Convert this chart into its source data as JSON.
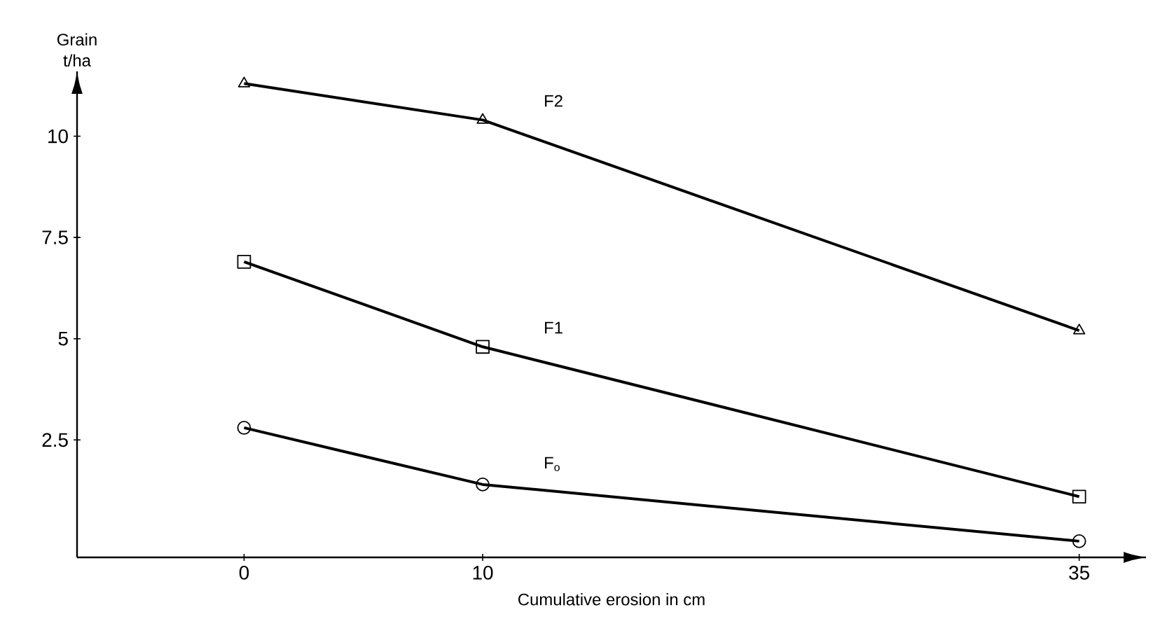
{
  "chart_data": {
    "type": "line",
    "xlabel": "Cumulative erosion in cm",
    "ylabel": "Grain t/ha",
    "x": [
      0,
      10,
      35
    ],
    "xlim": [
      -7,
      37.8
    ],
    "ylim": [
      -0.4,
      11.6
    ],
    "xticks": [
      0,
      10,
      35
    ],
    "yticks": [
      2.5,
      5,
      7.5,
      10
    ],
    "grid": false,
    "series": [
      {
        "name": "F2",
        "color": "#000000",
        "marker": "triangle",
        "values": [
          11.3,
          10.4,
          5.2
        ]
      },
      {
        "name": "F1",
        "color": "#000000",
        "marker": "square",
        "values": [
          6.9,
          4.8,
          1.1
        ]
      },
      {
        "name": "F$_{o}$",
        "color": "#000000",
        "marker": "circle",
        "values": [
          2.8,
          1.4,
          0
        ]
      }
    ]
  }
}
